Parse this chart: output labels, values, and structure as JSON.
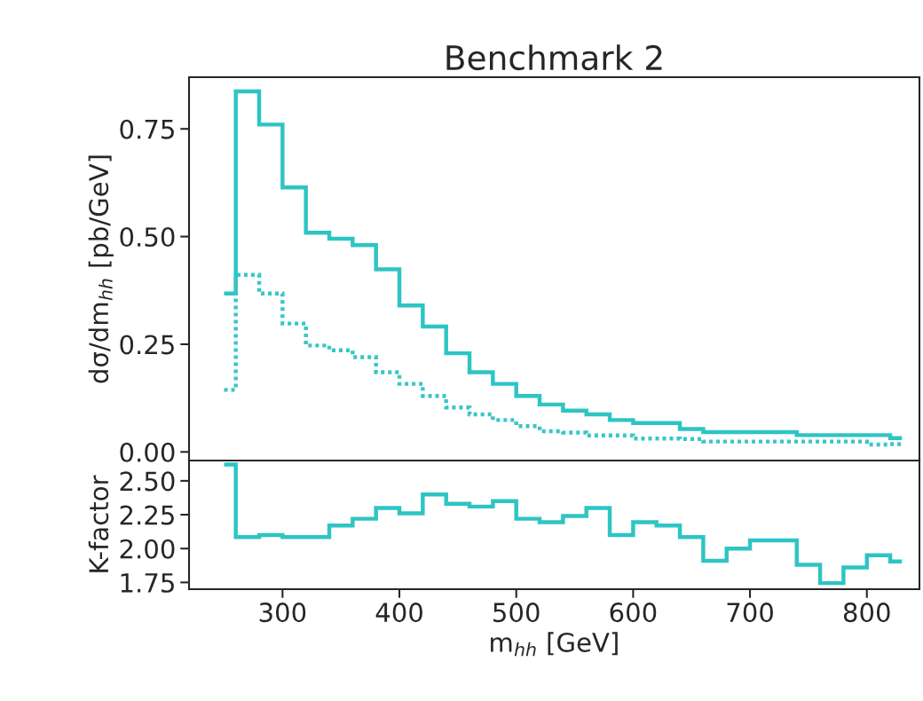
{
  "chart_data": [
    {
      "type": "histogram",
      "title": "Benchmark 2",
      "ylabel": "dσ/dm$_{hh}$ [pb/GeV]",
      "bins": [
        250,
        260,
        280,
        300,
        320,
        340,
        360,
        380,
        400,
        420,
        440,
        460,
        480,
        500,
        520,
        540,
        560,
        580,
        600,
        620,
        640,
        660,
        680,
        700,
        720,
        740,
        760,
        780,
        800,
        820,
        830
      ],
      "series": [
        {
          "color": "#2ec4c4",
          "line_style": "solid",
          "values": [
            0.368,
            0.837,
            0.76,
            0.614,
            0.509,
            0.495,
            0.48,
            0.424,
            0.34,
            0.291,
            0.229,
            0.185,
            0.158,
            0.13,
            0.11,
            0.096,
            0.087,
            0.074,
            0.067,
            0.067,
            0.053,
            0.046,
            0.046,
            0.046,
            0.046,
            0.039,
            0.039,
            0.039,
            0.039,
            0.032
          ]
        },
        {
          "color": "#38c6c6",
          "line_style": "dotted",
          "values": [
            0.144,
            0.411,
            0.368,
            0.298,
            0.247,
            0.236,
            0.22,
            0.185,
            0.158,
            0.13,
            0.103,
            0.087,
            0.074,
            0.06,
            0.048,
            0.045,
            0.038,
            0.038,
            0.031,
            0.031,
            0.03,
            0.024,
            0.024,
            0.024,
            0.024,
            0.024,
            0.024,
            0.024,
            0.017,
            0.018
          ]
        }
      ],
      "xlim": [
        220,
        845
      ],
      "ylim": [
        -0.02,
        0.87
      ],
      "yticks": [
        {
          "value": 0,
          "label": "0.00"
        },
        0.25,
        {
          "value": 0.5,
          "label": "0.50"
        },
        0.75
      ],
      "tick_labels": "y"
    },
    {
      "type": "histogram",
      "xlabel": "m$_{hh}$ [GeV]",
      "ylabel": "K-factor",
      "bins": [
        250,
        260,
        280,
        300,
        320,
        340,
        360,
        380,
        400,
        420,
        440,
        460,
        480,
        500,
        520,
        540,
        560,
        580,
        600,
        620,
        640,
        660,
        680,
        700,
        720,
        740,
        760,
        780,
        800,
        820,
        830
      ],
      "series": [
        {
          "color": "#2ec4c4",
          "line_style": "solid",
          "values": [
            2.62,
            2.085,
            2.1,
            2.085,
            2.085,
            2.17,
            2.22,
            2.3,
            2.26,
            2.4,
            2.33,
            2.31,
            2.35,
            2.22,
            2.195,
            2.24,
            2.3,
            2.1,
            2.195,
            2.17,
            2.085,
            1.91,
            2.0,
            2.06,
            2.06,
            1.88,
            1.745,
            1.86,
            1.95,
            1.905
          ]
        }
      ],
      "xlim": [
        220,
        845
      ],
      "xticks": [
        300,
        400,
        500,
        600,
        700,
        800
      ],
      "ylim": [
        1.7,
        2.65
      ],
      "yticks": [
        1.75,
        {
          "value": 2.0,
          "label": "2.00"
        },
        2.25,
        {
          "value": 2.5,
          "label": "2.50"
        }
      ]
    }
  ]
}
